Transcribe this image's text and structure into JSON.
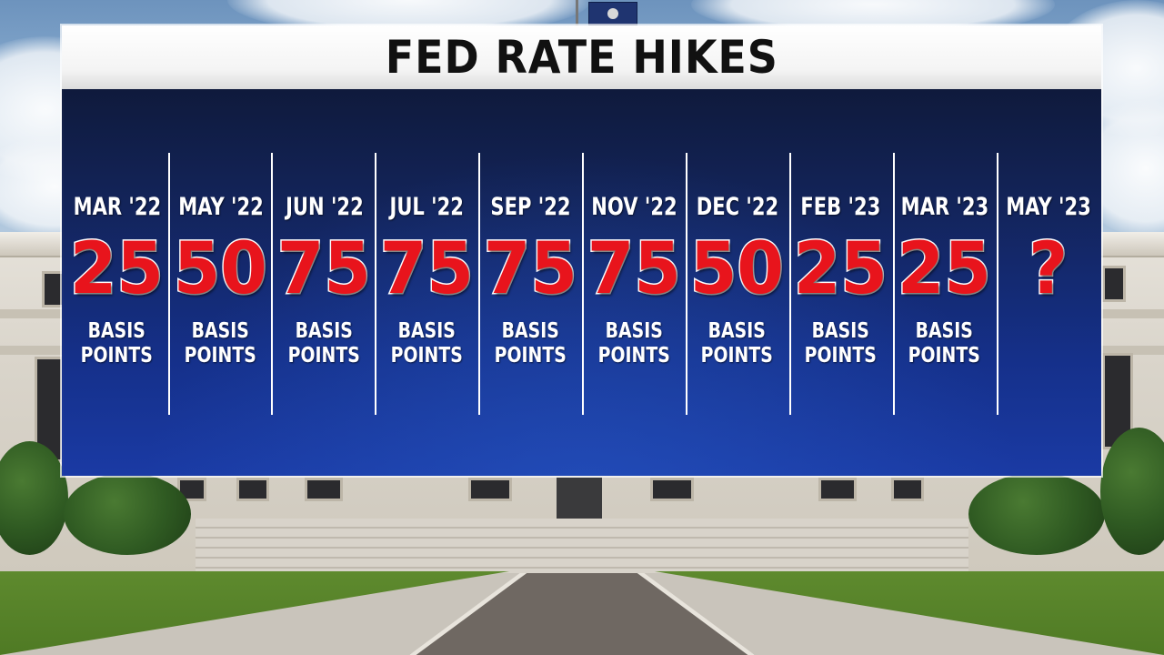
{
  "title": "FED RATE HIKES",
  "hikes": [
    {
      "month": "MAR '22",
      "value": "25",
      "unit_line1": "BASIS",
      "unit_line2": "POINTS"
    },
    {
      "month": "MAY '22",
      "value": "50",
      "unit_line1": "BASIS",
      "unit_line2": "POINTS"
    },
    {
      "month": "JUN '22",
      "value": "75",
      "unit_line1": "BASIS",
      "unit_line2": "POINTS"
    },
    {
      "month": "JUL '22",
      "value": "75",
      "unit_line1": "BASIS",
      "unit_line2": "POINTS"
    },
    {
      "month": "SEP '22",
      "value": "75",
      "unit_line1": "BASIS",
      "unit_line2": "POINTS"
    },
    {
      "month": "NOV '22",
      "value": "75",
      "unit_line1": "BASIS",
      "unit_line2": "POINTS"
    },
    {
      "month": "DEC '22",
      "value": "50",
      "unit_line1": "BASIS",
      "unit_line2": "POINTS"
    },
    {
      "month": "FEB '23",
      "value": "25",
      "unit_line1": "BASIS",
      "unit_line2": "POINTS"
    },
    {
      "month": "MAR '23",
      "value": "25",
      "unit_line1": "BASIS",
      "unit_line2": "POINTS"
    },
    {
      "month": "MAY '23",
      "value": "?",
      "unit_line1": "",
      "unit_line2": ""
    }
  ],
  "colors": {
    "value_red": "#e8141c",
    "panel_blue": "#15308a",
    "title_text": "#111111"
  }
}
